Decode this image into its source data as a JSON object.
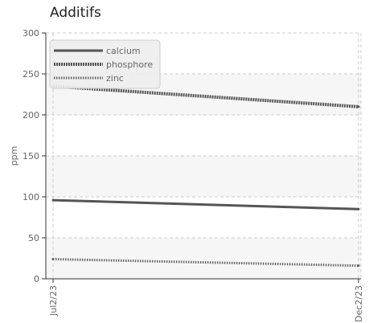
{
  "chart_data": {
    "type": "line",
    "title": "Additifs",
    "xlabel": "",
    "ylabel": "ppm",
    "x": [
      "Jul2/23",
      "Dec2/23"
    ],
    "ylim": [
      0,
      300
    ],
    "yticks": [
      0,
      50,
      100,
      150,
      200,
      250,
      300
    ],
    "grid": true,
    "legend_position": "top-left",
    "series": [
      {
        "name": "calcium",
        "values": [
          96,
          85
        ],
        "color": "#555555",
        "style": "solid"
      },
      {
        "name": "phosphore",
        "values": [
          235,
          210
        ],
        "color": "#555555",
        "style": "dotted-thick"
      },
      {
        "name": "zinc",
        "values": [
          24,
          16
        ],
        "color": "#666666",
        "style": "dotted"
      }
    ]
  }
}
